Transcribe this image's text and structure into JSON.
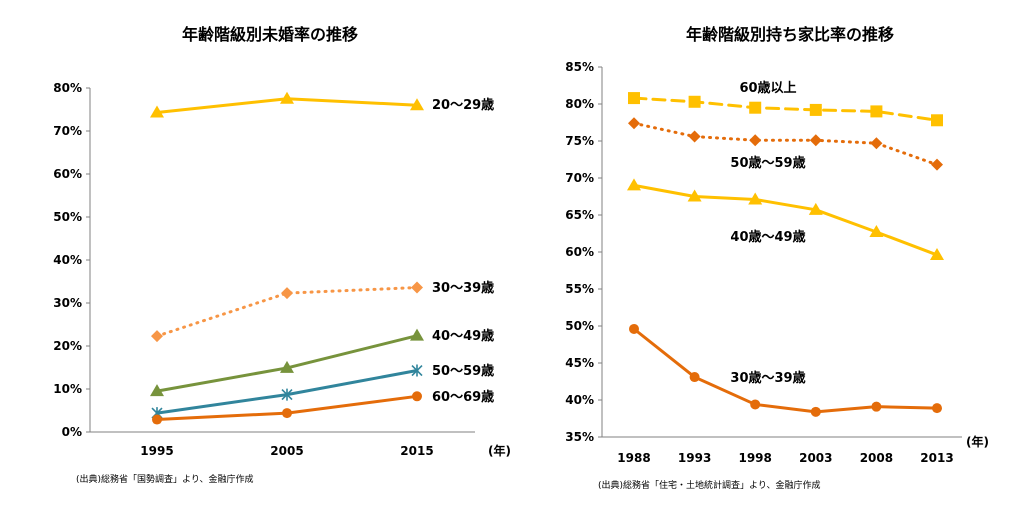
{
  "chart_data": [
    {
      "type": "line",
      "title": "年齢階級別未婚率の推移",
      "x_unit": "(年)",
      "categories": [
        "1995",
        "2005",
        "2015"
      ],
      "ylim": [
        0,
        80
      ],
      "y_ticks": [
        "0%",
        "10%",
        "20%",
        "30%",
        "40%",
        "50%",
        "60%",
        "70%",
        "80%"
      ],
      "grid": false,
      "source": "(出典)総務省「国勢調査」より、金融庁作成",
      "series": [
        {
          "name": "20〜29歳",
          "values": [
            74.3,
            77.5,
            76.0
          ],
          "color": "#ffc000",
          "marker": "triangle",
          "dash": "solid"
        },
        {
          "name": "30〜39歳",
          "values": [
            22.3,
            32.3,
            33.6
          ],
          "color": "#f79646",
          "marker": "diamond",
          "dash": "dotted"
        },
        {
          "name": "40〜49歳",
          "values": [
            9.5,
            14.9,
            22.4
          ],
          "color": "#77933c",
          "marker": "triangle",
          "dash": "solid"
        },
        {
          "name": "50〜59歳",
          "values": [
            4.4,
            8.7,
            14.3
          ],
          "color": "#31859c",
          "marker": "star",
          "dash": "solid"
        },
        {
          "name": "60〜69歳",
          "values": [
            2.9,
            4.4,
            8.3
          ],
          "color": "#e46c0a",
          "marker": "circle",
          "dash": "solid"
        }
      ]
    },
    {
      "type": "line",
      "title": "年齢階級別持ち家比率の推移",
      "x_unit": "(年)",
      "categories": [
        "1988",
        "1993",
        "1998",
        "2003",
        "2008",
        "2013"
      ],
      "ylim": [
        35,
        85
      ],
      "y_ticks": [
        "35%",
        "40%",
        "45%",
        "50%",
        "55%",
        "60%",
        "65%",
        "70%",
        "75%",
        "80%",
        "85%"
      ],
      "grid": false,
      "source": "(出典)総務省「住宅・土地統計調査」より、金融庁作成",
      "series": [
        {
          "name": "60歳以上",
          "values": [
            80.8,
            80.3,
            79.5,
            79.2,
            79.0,
            77.8
          ],
          "color": "#ffc000",
          "marker": "square",
          "dash": "dashed"
        },
        {
          "name": "50歳〜59歳",
          "values": [
            77.4,
            75.6,
            75.1,
            75.1,
            74.7,
            71.8
          ],
          "color": "#e46c0a",
          "marker": "diamond",
          "dash": "dotted"
        },
        {
          "name": "40歳〜49歳",
          "values": [
            69.0,
            67.5,
            67.1,
            65.7,
            62.7,
            59.6
          ],
          "color": "#ffc000",
          "marker": "triangle",
          "dash": "solid"
        },
        {
          "name": "30歳〜39歳",
          "values": [
            49.6,
            43.1,
            39.4,
            38.4,
            39.1,
            38.9
          ],
          "color": "#e46c0a",
          "marker": "circle",
          "dash": "solid"
        }
      ]
    }
  ]
}
